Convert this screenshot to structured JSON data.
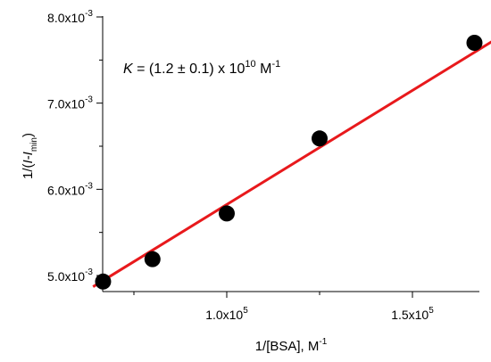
{
  "chart_data": {
    "type": "scatter",
    "title": "",
    "xlabel": {
      "main": "1/[BSA], M",
      "sup": "-1"
    },
    "ylabel": {
      "pre": "1/(",
      "italic1": "I",
      "mid": "-",
      "italic2": "I",
      "sub": "min",
      "post": ")"
    },
    "x_unit_exponent": 5,
    "y_unit_exponent": -3,
    "xlim": [
      0.6,
      1.8
    ],
    "ylim": [
      4.8,
      8.0
    ],
    "x_ticks": [
      {
        "value": 1.0,
        "mantissa": "1.0x10",
        "exp": "5"
      },
      {
        "value": 1.5,
        "mantissa": "1.5x10",
        "exp": "5"
      }
    ],
    "y_ticks": [
      {
        "value": 5.0,
        "mantissa": "5.0x10",
        "exp": "-3"
      },
      {
        "value": 6.0,
        "mantissa": "6.0x10",
        "exp": "-3"
      },
      {
        "value": 7.0,
        "mantissa": "7.0x10",
        "exp": "-3"
      },
      {
        "value": 8.0,
        "mantissa": "8.0x10",
        "exp": "-3"
      }
    ],
    "points": [
      {
        "x": 0.667,
        "y": 4.93
      },
      {
        "x": 0.8,
        "y": 5.19
      },
      {
        "x": 1.0,
        "y": 5.72
      },
      {
        "x": 1.25,
        "y": 6.59
      },
      {
        "x": 1.667,
        "y": 7.7
      }
    ],
    "fit_line": {
      "x": [
        0.64,
        1.72
      ],
      "y": [
        4.87,
        7.73
      ],
      "color": "#e8191c"
    },
    "marker_color": "#000000",
    "annotation": {
      "var": "K",
      "text": " = (1.2 ± 0.1) x 10",
      "exp": "10",
      "unit": " M",
      "unit_exp": "-1"
    },
    "grid": false,
    "legend": "none"
  }
}
